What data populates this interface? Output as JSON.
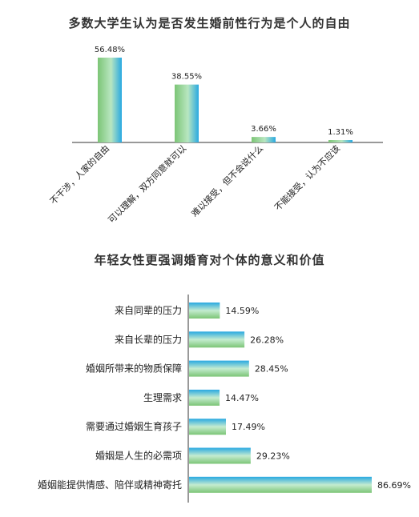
{
  "chart_data": [
    {
      "type": "bar",
      "title": "多数大学生认为是否发生婚前性行为是个人的自由",
      "categories": [
        "不干涉，人家的自由",
        "可以理解，双方同意就可以",
        "难以接受，但不会说什么",
        "不能接受，认为不应该"
      ],
      "values": [
        56.48,
        38.55,
        3.66,
        1.31
      ],
      "value_labels": [
        "56.48%",
        "38.55%",
        "3.66%",
        "1.31%"
      ],
      "unit": "%",
      "orientation": "vertical",
      "ylim": [
        0,
        60
      ],
      "grid": false,
      "colors": {
        "fill_start": "#7cc576",
        "fill_end": "#29a9e1"
      }
    },
    {
      "type": "bar",
      "title": "年轻女性更强调婚育对个体的意义和价值",
      "categories": [
        "来自同辈的压力",
        "来自长辈的压力",
        "婚姻所带来的物质保障",
        "生理需求",
        "需要通过婚姻生育孩子",
        "婚姻是人生的必需项",
        "婚姻能提供情感、陪伴或精神寄托"
      ],
      "values": [
        14.59,
        26.28,
        28.45,
        14.47,
        17.49,
        29.23,
        86.69
      ],
      "value_labels": [
        "14.59%",
        "26.28%",
        "28.45%",
        "14.47%",
        "17.49%",
        "29.23%",
        "86.69%"
      ],
      "unit": "%",
      "orientation": "horizontal",
      "xlim": [
        0,
        88
      ],
      "grid": false,
      "colors": {
        "fill_start": "#29a9e1",
        "fill_end": "#7cc576"
      }
    }
  ]
}
